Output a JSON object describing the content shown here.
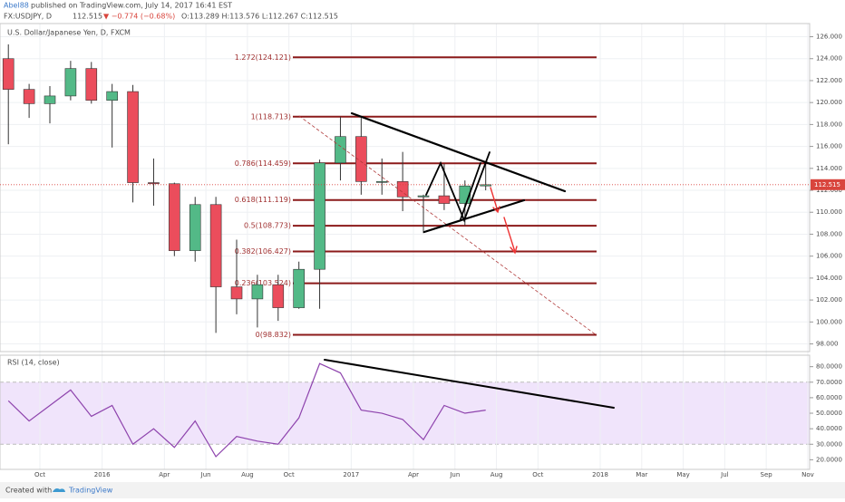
{
  "header": {
    "author": "Abel88",
    "published": "published on TradingView.com, July 14, 2017 16:41 EST",
    "symbol": "FX:USDJPY, D",
    "last": "112.515",
    "change": "▼ −0.774 (−0.68%)",
    "ohlc": "O:113.289 H:113.576 L:112.267 C:112.515"
  },
  "footer": {
    "created": "Created with",
    "brand": "TradingView"
  },
  "chart_data": [
    {
      "type": "candlestick",
      "title": "U.S. Dollar/Japanese Yen, D, FXCM",
      "x": [
        "2015-08",
        "2015-09",
        "2015-10",
        "2015-11",
        "2015-12",
        "2016-01",
        "2016-02",
        "2016-03",
        "2016-04",
        "2016-05",
        "2016-06",
        "2016-07",
        "2016-08",
        "2016-09",
        "2016-10",
        "2016-11",
        "2016-12",
        "2017-01",
        "2017-02",
        "2017-03",
        "2017-04",
        "2017-05",
        "2017-06",
        "2017-07"
      ],
      "open": [
        124,
        121.2,
        119.9,
        120.6,
        123.1,
        120.2,
        121,
        112.7,
        112.6,
        106.5,
        110.7,
        103.2,
        102.1,
        103.4,
        101.3,
        104.8,
        114.5,
        116.9,
        112.8,
        112.8,
        111.4,
        111.5,
        110.8,
        112.4
      ],
      "high": [
        125.3,
        121.7,
        121.5,
        123.8,
        123.7,
        121.7,
        121.6,
        114.9,
        112.7,
        111.4,
        111.4,
        107.5,
        104.3,
        104.3,
        105.5,
        114.8,
        118.7,
        118.6,
        114.9,
        115.5,
        111.6,
        114.4,
        112.9,
        114.5
      ],
      "low": [
        116.2,
        118.6,
        118.1,
        120.2,
        119.9,
        115.9,
        110.9,
        110.6,
        106,
        105.5,
        99,
        100.7,
        99.5,
        100.1,
        101.2,
        101.2,
        112.9,
        111.6,
        111.6,
        110.1,
        108.1,
        110.2,
        108.8,
        112
      ],
      "close": [
        121.2,
        119.9,
        120.6,
        123.1,
        120.2,
        121,
        112.7,
        112.6,
        106.5,
        110.7,
        103.2,
        102.1,
        103.4,
        101.3,
        104.8,
        114.5,
        116.9,
        112.8,
        112.8,
        111.4,
        111.5,
        110.8,
        112.4,
        112.515
      ],
      "up_color": "#53b987",
      "down_color": "#eb4d5c",
      "last_price": {
        "value": 112.515,
        "label": "112.515"
      },
      "fib_levels": [
        {
          "value": 124.121,
          "label": "1.272(124.121)"
        },
        {
          "value": 118.713,
          "label": "1(118.713)"
        },
        {
          "value": 114.459,
          "label": "0.786(114.459)"
        },
        {
          "value": 111.119,
          "label": "0.618(111.119)"
        },
        {
          "value": 108.773,
          "label": "0.5(108.773)"
        },
        {
          "value": 106.427,
          "label": "0.382(106.427)"
        },
        {
          "value": 103.524,
          "label": "0.236(103.524)"
        },
        {
          "value": 98.832,
          "label": "0(98.832)"
        }
      ],
      "fib_color": "#8b1a1a",
      "ylim": [
        97.3,
        127.2
      ],
      "yticks": [
        {
          "value": 98,
          "label": "98.000"
        },
        {
          "value": 100,
          "label": "100.000"
        },
        {
          "value": 102,
          "label": "102.000"
        },
        {
          "value": 104,
          "label": "104.000"
        },
        {
          "value": 106,
          "label": "106.000"
        },
        {
          "value": 108,
          "label": "108.000"
        },
        {
          "value": 110,
          "label": "110.000"
        },
        {
          "value": 112,
          "label": "112.000"
        },
        {
          "value": 114,
          "label": "114.000"
        },
        {
          "value": 116,
          "label": "116.000"
        },
        {
          "value": 118,
          "label": "118.000"
        },
        {
          "value": 120,
          "label": "120.000"
        },
        {
          "value": 122,
          "label": "122.000"
        },
        {
          "value": 124,
          "label": "124.000"
        },
        {
          "value": 126,
          "label": "126.000"
        }
      ],
      "grid": true
    },
    {
      "type": "line",
      "title": "RSI (14, close)",
      "x": [
        "2015-08",
        "2015-09",
        "2015-10",
        "2015-11",
        "2015-12",
        "2016-01",
        "2016-02",
        "2016-03",
        "2016-04",
        "2016-05",
        "2016-06",
        "2016-07",
        "2016-08",
        "2016-09",
        "2016-10",
        "2016-11",
        "2016-12",
        "2017-01",
        "2017-02",
        "2017-03",
        "2017-04",
        "2017-05",
        "2017-06",
        "2017-07"
      ],
      "series": [
        {
          "name": "RSI",
          "color": "#8e44ad",
          "values": [
            58,
            45,
            55,
            65,
            48,
            55,
            30,
            40,
            28,
            45,
            22,
            35,
            32,
            30,
            47,
            82,
            76,
            52,
            50,
            46,
            33,
            55,
            50,
            52
          ]
        }
      ],
      "band": [
        30,
        70
      ],
      "band_color": "#f0e4fb",
      "ylim": [
        13.8,
        87.4
      ],
      "yticks": [
        {
          "value": 20,
          "label": "20.0000"
        },
        {
          "value": 30,
          "label": "30.0000"
        },
        {
          "value": 40,
          "label": "40.0000"
        },
        {
          "value": 50,
          "label": "50.0000"
        },
        {
          "value": 60,
          "label": "60.0000"
        },
        {
          "value": 70,
          "label": "70.0000"
        },
        {
          "value": 80,
          "label": "80.0000"
        }
      ],
      "xticks": [
        {
          "value": "2015-10",
          "label": "Oct"
        },
        {
          "value": "2016-01",
          "label": "2016"
        },
        {
          "value": "2016-04",
          "label": "Apr"
        },
        {
          "value": "2016-06",
          "label": "Jun"
        },
        {
          "value": "2016-08",
          "label": "Aug"
        },
        {
          "value": "2016-10",
          "label": "Oct"
        },
        {
          "value": "2017-01",
          "label": "2017"
        },
        {
          "value": "2017-04",
          "label": "Apr"
        },
        {
          "value": "2017-06",
          "label": "Jun"
        },
        {
          "value": "2017-08",
          "label": "Aug"
        },
        {
          "value": "2017-10",
          "label": "Oct"
        },
        {
          "value": "2018-01",
          "label": "2018"
        },
        {
          "value": "2018-03",
          "label": "Mar"
        },
        {
          "value": "2018-05",
          "label": "May"
        },
        {
          "value": "2018-07",
          "label": "Jul"
        },
        {
          "value": "2018-09",
          "label": "Sep"
        },
        {
          "value": "2018-11",
          "label": "Nov"
        }
      ],
      "grid": true
    }
  ]
}
